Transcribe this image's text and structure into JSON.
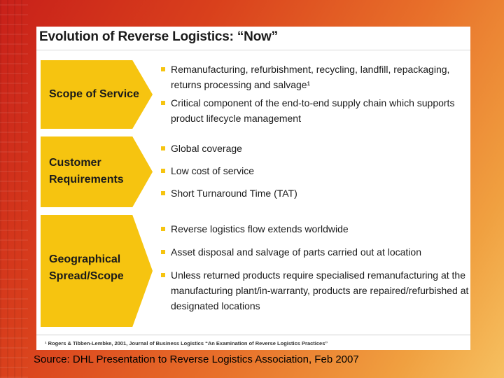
{
  "slide": {
    "title": "Evolution of Reverse Logistics: “Now”",
    "rows": [
      {
        "label_lines": [
          "Scope of Service"
        ],
        "bullets": [
          [
            "Remanufacturing, refurbishment, recycling, landfill, repackaging,",
            "returns processing and salvage¹"
          ],
          [
            "Critical component of the end-to-end supply chain which supports",
            "product lifecycle management"
          ]
        ]
      },
      {
        "label_lines": [
          "Customer",
          "Requirements"
        ],
        "bullets": [
          [
            "Global coverage"
          ],
          [
            "Low cost of service"
          ],
          [
            "Short Turnaround Time (TAT)"
          ]
        ]
      },
      {
        "label_lines": [
          "Geographical",
          "Spread/Scope"
        ],
        "bullets": [
          [
            "Reverse logistics flow extends worldwide"
          ],
          [
            "Asset disposal and salvage of parts carried out at location"
          ],
          [
            "Unless returned products require specialised remanufacturing at the",
            "manufacturing plant/in-warranty, products are repaired/refurbished at",
            "designated locations"
          ]
        ]
      }
    ],
    "footnote": "¹ Rogers & Tibben-Lembke, 2001, Journal of Business Logistics “An Examination of Reverse Logistics Practices”"
  },
  "source": "Source: DHL Presentation to Reverse Logistics Association, Feb 2007",
  "colors": {
    "accent": "#f6c410",
    "background_from": "#c8201a",
    "background_to": "#f6c060"
  }
}
